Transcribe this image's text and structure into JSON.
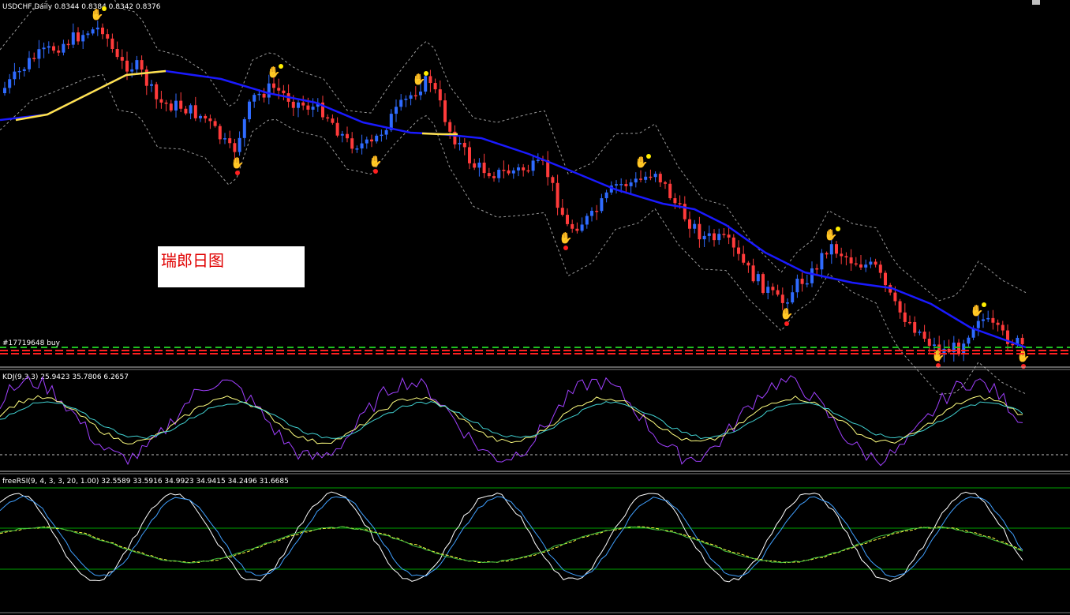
{
  "main": {
    "header": "USDCHF,Daily  0.8344 0.8384 0.8342 0.8376",
    "order_label": "#17719648 buy",
    "note": "瑞郎日图",
    "colors": {
      "bull": "#2f6bff",
      "bear": "#ff3b3b",
      "ma_up": "#ffe24a",
      "ma_down": "#1a1aff",
      "band": "#9a9a9a",
      "order_line": "#ff3030",
      "sl_line": "#20c020"
    }
  },
  "kdj": {
    "header": "KDJ(9,3,3) 25.9423 35.7806 6.2657",
    "colors": {
      "K": "#ffff80",
      "D": "#40d0d0",
      "J": "#a040ff"
    }
  },
  "rsi": {
    "header": "freeRSI(9, 4, 3, 3, 20, 1.00) 32.5589 33.5916 34.9923 34.9415 34.2496 31.6685",
    "colors": {
      "fast": "#ffffff",
      "mid": "#40a0ff",
      "slow": "#ffff40",
      "slow2": "#40c040",
      "level": "#00a000"
    }
  },
  "chart_data": [
    {
      "type": "candlestick",
      "title": "USDCHF,Daily",
      "ohlc_last": [
        0.8344,
        0.8384,
        0.8342,
        0.8376
      ],
      "trend": "downtrend",
      "close_path": [
        [
          0.0,
          0.982
        ],
        [
          0.04,
          0.983
        ],
        [
          0.07,
          0.986
        ],
        [
          0.1,
          0.989
        ],
        [
          0.12,
          0.985
        ],
        [
          0.14,
          0.978
        ],
        [
          0.17,
          0.972
        ],
        [
          0.2,
          0.966
        ],
        [
          0.22,
          0.962
        ],
        [
          0.25,
          0.974
        ],
        [
          0.28,
          0.973
        ],
        [
          0.3,
          0.968
        ],
        [
          0.33,
          0.959
        ],
        [
          0.35,
          0.96
        ],
        [
          0.38,
          0.972
        ],
        [
          0.4,
          0.976
        ],
        [
          0.42,
          0.968
        ],
        [
          0.44,
          0.96
        ],
        [
          0.46,
          0.951
        ],
        [
          0.48,
          0.948
        ],
        [
          0.5,
          0.95
        ],
        [
          0.52,
          0.95
        ],
        [
          0.54,
          0.944
        ],
        [
          0.55,
          0.936
        ],
        [
          0.57,
          0.938
        ],
        [
          0.59,
          0.945
        ],
        [
          0.61,
          0.947
        ],
        [
          0.62,
          0.946
        ],
        [
          0.64,
          0.94
        ],
        [
          0.66,
          0.932
        ],
        [
          0.68,
          0.93
        ],
        [
          0.7,
          0.922
        ],
        [
          0.72,
          0.918
        ],
        [
          0.74,
          0.926
        ],
        [
          0.76,
          0.934
        ],
        [
          0.78,
          0.93
        ],
        [
          0.8,
          0.926
        ],
        [
          0.82,
          0.914
        ],
        [
          0.84,
          0.902
        ],
        [
          0.86,
          0.892
        ],
        [
          0.88,
          0.88
        ],
        [
          0.9,
          0.886
        ],
        [
          0.92,
          0.898
        ],
        [
          0.94,
          0.888
        ],
        [
          0.96,
          0.878
        ],
        [
          0.98,
          0.864
        ],
        [
          1.0,
          0.858
        ]
      ]
    },
    {
      "type": "line",
      "title": "KDJ(9,3,3)",
      "series": [
        {
          "name": "K",
          "last": 25.9423
        },
        {
          "name": "D",
          "last": 35.7806
        },
        {
          "name": "J",
          "last": 6.2657
        }
      ]
    },
    {
      "type": "line",
      "title": "freeRSI(9, 4, 3, 3, 20, 1.00)",
      "values_last": [
        32.5589,
        33.5916,
        34.9923,
        34.9415,
        34.2496,
        31.6685
      ]
    }
  ]
}
